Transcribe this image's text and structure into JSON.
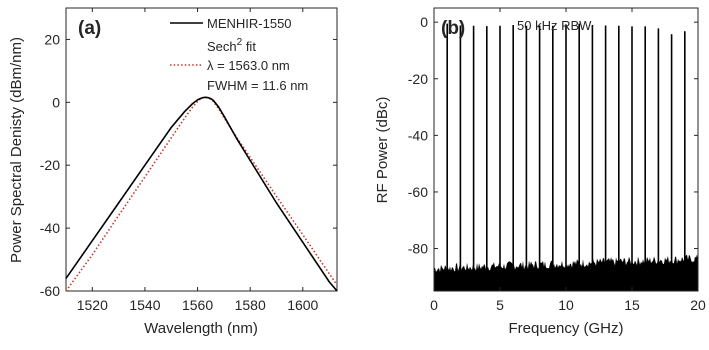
{
  "chart_data": [
    {
      "type": "line",
      "panel_label": "(a)",
      "xlabel": "Wavelength (nm)",
      "ylabel": "Power Spectral Denisty (dBm/nm)",
      "xlim": [
        1510,
        1613
      ],
      "ylim": [
        -60,
        30
      ],
      "xticks": [
        1520,
        1540,
        1560,
        1580,
        1600
      ],
      "yticks": [
        -60,
        -40,
        -20,
        0,
        20
      ],
      "grid": false,
      "legend_position": "top-right",
      "series": [
        {
          "name": "MENHIR-1550",
          "color": "#000000",
          "style": "solid",
          "x": [
            1510,
            1520,
            1530,
            1540,
            1550,
            1555,
            1558,
            1560,
            1561,
            1562,
            1563,
            1564,
            1565,
            1566,
            1568,
            1570,
            1575,
            1580,
            1590,
            1600,
            1610,
            1613
          ],
          "y": [
            -56,
            -44,
            -32,
            -20,
            -8,
            -3,
            -0.5,
            0.8,
            1.2,
            1.5,
            1.6,
            1.5,
            1.2,
            0.6,
            -1.5,
            -4.3,
            -11.7,
            -18.5,
            -32,
            -44.5,
            -57,
            -60
          ]
        },
        {
          "name": "Sech² fit",
          "color": "#c0392b",
          "style": "dotted",
          "x": [
            1510,
            1520,
            1530,
            1540,
            1550,
            1555,
            1558,
            1560,
            1561,
            1562,
            1563,
            1564,
            1565,
            1566,
            1568,
            1570,
            1575,
            1580,
            1590,
            1600,
            1610,
            1613
          ],
          "y": [
            -61,
            -48.5,
            -36,
            -23.7,
            -11.3,
            -5.1,
            -1.6,
            0.3,
            1.0,
            1.4,
            1.6,
            1.4,
            1.0,
            0.3,
            -2.0,
            -4.8,
            -11.3,
            -17.5,
            -29.9,
            -42.1,
            -54.4,
            -58.1
          ]
        }
      ],
      "legend": {
        "line1": "MENHIR-1550",
        "line2": "Sech",
        "line2_sup": "2",
        "line2_suffix": " fit",
        "lambda": "λ = 1563.0 nm",
        "fwhm": "FWHM = 11.6 nm"
      }
    },
    {
      "type": "bar",
      "panel_label": "(b)",
      "annotation": "50 kHz RBW",
      "xlabel": "Frequency (GHz)",
      "ylabel": "RF Power (dBc)",
      "xlim": [
        0,
        20
      ],
      "ylim": [
        -95,
        5
      ],
      "xticks": [
        0,
        5,
        10,
        15,
        20
      ],
      "yticks": [
        -80,
        -60,
        -40,
        -20,
        0
      ],
      "grid": false,
      "noise_floor_dBc": -87,
      "comb_lines": {
        "frequency_GHz": [
          1,
          2,
          3,
          4,
          5,
          6,
          7,
          8,
          9,
          10,
          11,
          12,
          13,
          14,
          15,
          16,
          17,
          18,
          19
        ],
        "power_dBc": [
          -0.5,
          -1.2,
          -1.3,
          -1.4,
          -1.3,
          -1.0,
          -1.3,
          -1.2,
          -1.3,
          -0.8,
          -0.5,
          -1.0,
          -1.2,
          -1.3,
          -1.5,
          -1.5,
          -2.2,
          -4.3,
          -3.2
        ]
      }
    }
  ]
}
